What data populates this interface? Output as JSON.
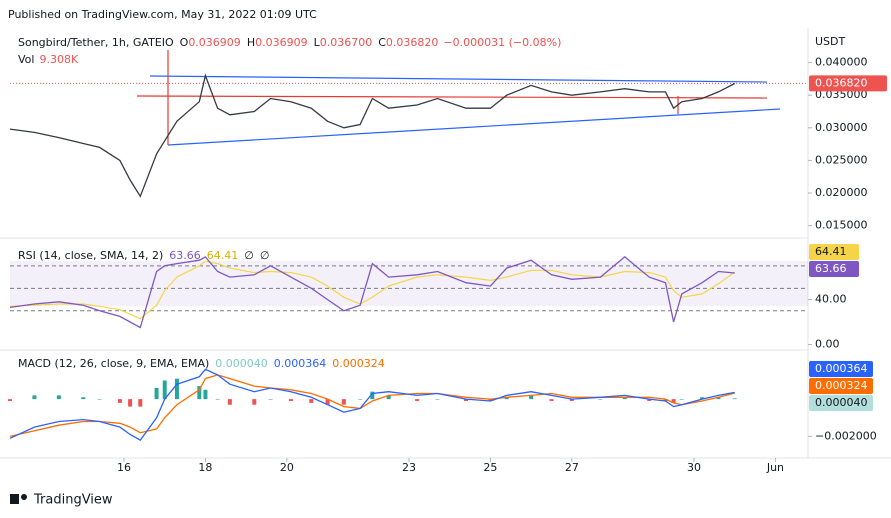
{
  "header": {
    "published": "Published on TradingView.com, May 31, 2022 01:09 UTC"
  },
  "legend": {
    "symbol": "Songbird/Tether, 1h, GATEIO",
    "ohlc": [
      {
        "label": "O",
        "value": "0.036909"
      },
      {
        "label": "H",
        "value": "0.036909"
      },
      {
        "label": "L",
        "value": "0.036700"
      },
      {
        "label": "C",
        "value": "0.036820"
      }
    ],
    "change": "−0.000031 (−0.08%)",
    "vol_label": "Vol",
    "vol_value": "9.308K"
  },
  "price_panel": {
    "currency": "USDT",
    "ylim": [
      0.0131,
      0.045
    ],
    "yticks": [
      {
        "value": 0.04,
        "label": "0.040000"
      },
      {
        "value": 0.035,
        "label": "0.035000"
      },
      {
        "value": 0.03,
        "label": "0.030000"
      },
      {
        "value": 0.025,
        "label": "0.025000"
      },
      {
        "value": 0.02,
        "label": "0.020000"
      },
      {
        "value": 0.015,
        "label": "0.015000"
      }
    ],
    "last": {
      "value": 0.03682,
      "label": "0.036820"
    },
    "color": "#363a45"
  },
  "xaxis": {
    "xlim": [
      13.2,
      32.8
    ],
    "xticks": [
      16,
      18,
      20,
      23,
      25,
      27,
      30,
      {
        "value": 32,
        "label": "Jun"
      }
    ]
  },
  "series": {
    "x": [
      13.2,
      13.8,
      14.4,
      15.0,
      15.4,
      15.9,
      16.15,
      16.4,
      16.8,
      17.0,
      17.3,
      17.85,
      18.0,
      18.3,
      18.6,
      19.2,
      19.6,
      20.1,
      20.6,
      21.0,
      21.4,
      21.8,
      22.1,
      22.5,
      23.2,
      23.7,
      24.4,
      25.0,
      25.4,
      26.0,
      26.5,
      27.0,
      27.7,
      28.3,
      28.9,
      29.3,
      29.5,
      29.7,
      30.2,
      30.6,
      31.0
    ],
    "price": [
      0.0298,
      0.0293,
      0.0285,
      0.0276,
      0.027,
      0.025,
      0.022,
      0.0195,
      0.026,
      0.028,
      0.031,
      0.034,
      0.038,
      0.033,
      0.032,
      0.0325,
      0.0345,
      0.034,
      0.033,
      0.031,
      0.03,
      0.0305,
      0.0345,
      0.033,
      0.0335,
      0.0345,
      0.033,
      0.033,
      0.035,
      0.0365,
      0.0355,
      0.035,
      0.0355,
      0.036,
      0.0355,
      0.0355,
      0.033,
      0.034,
      0.0345,
      0.0355,
      0.0368
    ],
    "rsi": [
      33,
      36,
      38,
      35,
      30,
      25,
      20,
      15,
      65,
      70,
      72,
      75,
      78,
      65,
      60,
      62,
      70,
      60,
      50,
      40,
      30,
      35,
      72,
      60,
      62,
      65,
      55,
      52,
      68,
      75,
      62,
      58,
      60,
      78,
      60,
      55,
      20,
      45,
      55,
      65,
      63.66
    ],
    "rsi_ma": [
      34,
      35,
      36,
      36,
      34,
      31,
      27,
      23,
      35,
      48,
      60,
      70,
      74,
      72,
      68,
      64,
      65,
      64,
      60,
      52,
      42,
      36,
      42,
      52,
      60,
      62,
      60,
      57,
      60,
      66,
      66,
      62,
      60,
      65,
      64,
      60,
      48,
      42,
      45,
      54,
      64.41
    ],
    "macd": [
      -0.0021,
      -0.0015,
      -0.0012,
      -0.0011,
      -0.0012,
      -0.0015,
      -0.0019,
      -0.0022,
      -0.001,
      0.0,
      0.0008,
      0.0012,
      0.0016,
      0.0013,
      0.0008,
      0.0004,
      0.0006,
      0.0004,
      0.0001,
      -0.0003,
      -0.0007,
      -0.0005,
      0.0003,
      0.0004,
      0.0002,
      0.0003,
      0.0,
      -0.0001,
      0.0002,
      0.0004,
      0.0002,
      0.0,
      0.0001,
      0.0002,
      0.0,
      -0.0001,
      -0.0004,
      -0.0003,
      0.0,
      0.0002,
      0.000364
    ],
    "signal": [
      -0.002,
      -0.0017,
      -0.0014,
      -0.0012,
      -0.0012,
      -0.0013,
      -0.0015,
      -0.0018,
      -0.0016,
      -0.001,
      -0.0003,
      0.0005,
      0.0011,
      0.0013,
      0.0011,
      0.0007,
      0.0006,
      0.0005,
      0.0003,
      0.0,
      -0.0004,
      -0.0005,
      -0.0001,
      0.0002,
      0.0003,
      0.0003,
      0.0001,
      0.0,
      0.0001,
      0.0002,
      0.0003,
      0.0001,
      0.0001,
      0.0001,
      0.0001,
      0.0,
      -0.0002,
      -0.0003,
      -0.0001,
      0.0001,
      0.000324
    ],
    "histogram": [
      -0.0001,
      0.0002,
      0.0002,
      0.0001,
      0,
      -0.0002,
      -0.0004,
      -0.0004,
      0.0006,
      0.001,
      0.0011,
      0.0007,
      0.0005,
      0,
      -0.0003,
      -0.0003,
      0,
      -0.0001,
      -0.0002,
      -0.0003,
      -0.0003,
      0,
      0.0004,
      0.0002,
      -0.0001,
      0,
      -0.0001,
      -0.0001,
      0.0001,
      0.0002,
      -0.0001,
      -0.0001,
      0,
      0.0001,
      -0.0001,
      -0.0001,
      -0.0002,
      0,
      0.0001,
      0.0001,
      4e-05
    ]
  },
  "rsi_panel": {
    "title": "RSI (14, close, SMA, 14, 2)",
    "rsi_value": "63.66",
    "ma_value": "64.41",
    "extra": [
      "∅",
      "∅"
    ],
    "ylim": [
      -4.9,
      93
    ],
    "yticks": [
      {
        "value": 40,
        "label": "40.00"
      },
      {
        "value": 0,
        "label": "0.00"
      }
    ],
    "levels": [
      70,
      50,
      30
    ],
    "rsi_color": "#7e57c2",
    "ma_color": "#f5d547"
  },
  "macd_panel": {
    "title": "MACD (12, 26, close, 9, EMA, EMA)",
    "hist_value": "0.000040",
    "macd_value": "0.000364",
    "signal_value": "0.000324",
    "ylim": [
      -0.00316,
      0.00253
    ],
    "yticks": [
      {
        "value": -0.002,
        "label": "−0.002000"
      }
    ],
    "macd_color": "#2962ff",
    "signal_color": "#ff6d00",
    "hist_up": "#26a69a",
    "hist_down": "#ef5350"
  },
  "footer": {
    "brand": "TradingView"
  }
}
